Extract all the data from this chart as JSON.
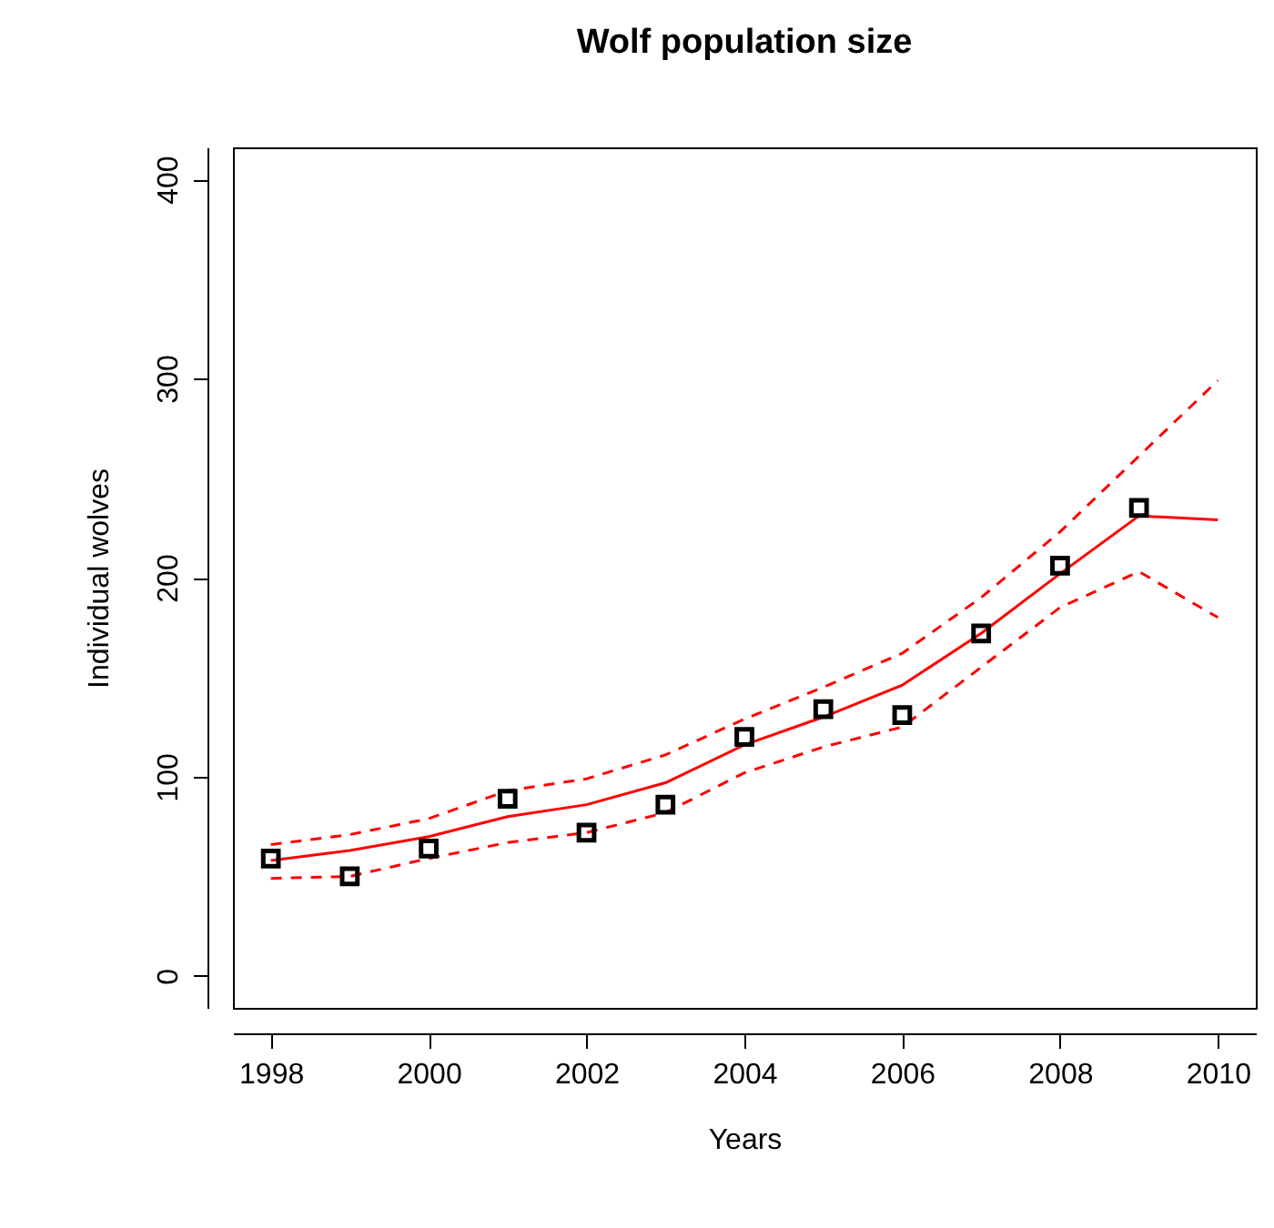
{
  "chart_data": {
    "type": "line",
    "title": "Wolf population size",
    "xlabel": "Years",
    "ylabel": "Individual wolves",
    "x": [
      1998,
      1999,
      2000,
      2001,
      2002,
      2003,
      2004,
      2005,
      2006,
      2007,
      2008,
      2009,
      2010
    ],
    "xlim": [
      1997.52,
      2010.48
    ],
    "xticks": [
      1998,
      2000,
      2002,
      2004,
      2006,
      2008,
      2010
    ],
    "ylim": [
      -16,
      416
    ],
    "yticks": [
      0,
      100,
      200,
      300,
      400
    ],
    "grid": false,
    "series": [
      {
        "color": "#ff0000",
        "line_style": "solid",
        "marker": "none",
        "values": [
          58,
          63,
          70,
          80,
          86,
          97,
          116,
          130,
          146,
          172,
          202,
          231,
          229
        ]
      },
      {
        "color": "#ff0000",
        "line_style": "dashed",
        "marker": "none",
        "values": [
          66,
          71,
          79,
          93,
          99,
          111,
          129,
          145,
          162,
          190,
          223,
          261,
          299
        ]
      },
      {
        "color": "#ff0000",
        "line_style": "dashed",
        "marker": "none",
        "values": [
          49,
          50,
          59,
          67,
          72,
          82,
          102,
          115,
          125,
          155,
          185,
          203,
          180
        ]
      },
      {
        "type": "scatter",
        "color": "#000000",
        "marker": "square",
        "x": [
          1998,
          1999,
          2000,
          2001,
          2002,
          2003,
          2004,
          2005,
          2006,
          2007,
          2008,
          2009
        ],
        "values": [
          59,
          50,
          64,
          89,
          72,
          86,
          120,
          134,
          131,
          172,
          206,
          235
        ]
      }
    ]
  }
}
